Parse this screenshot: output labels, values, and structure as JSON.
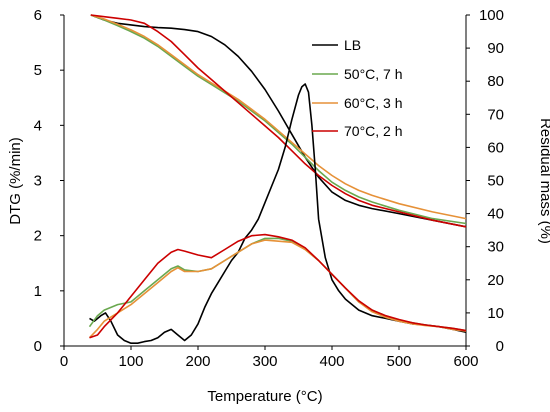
{
  "chart_data": {
    "type": "line",
    "xlabel": "Temperature (°C)",
    "ylabel_left": "DTG (%/min)",
    "ylabel_right": "Residual mass (%)",
    "xlim": [
      0,
      600
    ],
    "ylim_left": [
      0,
      6
    ],
    "ylim_right": [
      0,
      100
    ],
    "xticks": [
      "0",
      "100",
      "200",
      "300",
      "400",
      "500",
      "600"
    ],
    "yticks_left": [
      "0",
      "1",
      "2",
      "3",
      "4",
      "5",
      "6"
    ],
    "yticks_right": [
      "0",
      "10",
      "20",
      "30",
      "40",
      "50",
      "60",
      "70",
      "80",
      "90",
      "100"
    ],
    "grid": false,
    "legend_position": "top-right",
    "colors": {
      "LB": "#000000",
      "50C": "#6aa84f",
      "60C": "#e69138",
      "70C": "#cc0000"
    },
    "series": [
      {
        "name": "LB",
        "kind": "residual_mass",
        "axis": "right",
        "x": [
          40,
          60,
          80,
          100,
          120,
          140,
          160,
          180,
          200,
          220,
          240,
          260,
          280,
          300,
          320,
          340,
          360,
          380,
          400,
          420,
          440,
          460,
          500,
          550,
          600
        ],
        "y": [
          100,
          98.5,
          97.5,
          97,
          96.5,
          96.2,
          96,
          95.6,
          95,
          93.5,
          91,
          87.5,
          83,
          77.5,
          71,
          64,
          57,
          51,
          46.5,
          44,
          42.5,
          41.5,
          40,
          38,
          36
        ]
      },
      {
        "name": "50°C, 7 h",
        "kind": "residual_mass",
        "axis": "right",
        "x": [
          40,
          60,
          80,
          100,
          120,
          140,
          160,
          180,
          200,
          220,
          240,
          260,
          280,
          300,
          320,
          340,
          360,
          380,
          400,
          420,
          440,
          460,
          500,
          550,
          600
        ],
        "y": [
          100,
          98.5,
          96.8,
          95,
          93,
          90.5,
          87.5,
          84.5,
          81.5,
          79,
          76.5,
          74,
          71,
          68,
          64.5,
          61,
          57,
          53,
          49.5,
          47,
          45,
          43.5,
          41,
          38.5,
          37
        ]
      },
      {
        "name": "60°C, 3 h",
        "kind": "residual_mass",
        "axis": "right",
        "x": [
          40,
          60,
          80,
          100,
          120,
          140,
          160,
          180,
          200,
          220,
          240,
          260,
          280,
          300,
          320,
          340,
          360,
          380,
          400,
          420,
          440,
          460,
          500,
          550,
          600
        ],
        "y": [
          100,
          98.8,
          97.2,
          95.5,
          93.5,
          91,
          88,
          85,
          82,
          79.5,
          77,
          74.5,
          71.5,
          68.5,
          65,
          61.5,
          58,
          54.5,
          51.5,
          49,
          47,
          45.5,
          43,
          40.5,
          38.5
        ]
      },
      {
        "name": "70°C, 2 h",
        "kind": "residual_mass",
        "axis": "right",
        "x": [
          40,
          60,
          80,
          100,
          120,
          140,
          160,
          180,
          200,
          220,
          240,
          260,
          280,
          300,
          320,
          340,
          360,
          380,
          400,
          420,
          440,
          460,
          500,
          550,
          600
        ],
        "y": [
          100,
          99.5,
          99,
          98.5,
          97.5,
          95,
          92,
          88,
          84,
          80.5,
          77,
          73.5,
          70,
          66.5,
          63,
          59,
          55,
          51.5,
          48.5,
          46,
          44,
          42.5,
          40.5,
          38,
          36
        ]
      },
      {
        "name": "LB",
        "kind": "dtg",
        "axis": "left",
        "x": [
          38,
          45,
          55,
          62,
          70,
          80,
          90,
          100,
          110,
          120,
          130,
          140,
          150,
          160,
          170,
          180,
          190,
          200,
          210,
          220,
          230,
          240,
          250,
          260,
          270,
          280,
          290,
          300,
          310,
          320,
          330,
          340,
          350,
          355,
          360,
          365,
          370,
          375,
          380,
          390,
          400,
          410,
          420,
          430,
          440,
          460,
          480,
          500,
          520,
          540,
          560,
          580,
          600
        ],
        "y": [
          0.5,
          0.45,
          0.55,
          0.6,
          0.45,
          0.2,
          0.1,
          0.05,
          0.05,
          0.08,
          0.1,
          0.15,
          0.25,
          0.3,
          0.2,
          0.1,
          0.2,
          0.4,
          0.7,
          0.95,
          1.15,
          1.35,
          1.55,
          1.7,
          1.95,
          2.1,
          2.3,
          2.6,
          2.9,
          3.2,
          3.6,
          4.1,
          4.55,
          4.7,
          4.75,
          4.6,
          4.0,
          3.2,
          2.3,
          1.6,
          1.2,
          1.0,
          0.85,
          0.75,
          0.65,
          0.55,
          0.5,
          0.45,
          0.4,
          0.38,
          0.35,
          0.3,
          0.25
        ]
      },
      {
        "name": "50°C, 7 h",
        "kind": "dtg",
        "axis": "left",
        "x": [
          38,
          50,
          60,
          80,
          100,
          120,
          140,
          160,
          170,
          180,
          200,
          220,
          240,
          260,
          280,
          300,
          320,
          340,
          360,
          380,
          400,
          420,
          440,
          460,
          480,
          500,
          520,
          540,
          560,
          580,
          600
        ],
        "y": [
          0.35,
          0.55,
          0.65,
          0.75,
          0.8,
          1.0,
          1.2,
          1.4,
          1.45,
          1.38,
          1.35,
          1.4,
          1.55,
          1.7,
          1.85,
          1.95,
          1.95,
          1.9,
          1.75,
          1.55,
          1.3,
          1.05,
          0.8,
          0.65,
          0.55,
          0.47,
          0.42,
          0.38,
          0.35,
          0.32,
          0.28
        ]
      },
      {
        "name": "60°C, 3 h",
        "kind": "dtg",
        "axis": "left",
        "x": [
          38,
          50,
          60,
          80,
          100,
          120,
          140,
          160,
          170,
          180,
          200,
          220,
          240,
          260,
          280,
          300,
          320,
          340,
          360,
          380,
          400,
          420,
          440,
          460,
          480,
          500,
          520,
          540,
          560,
          580,
          600
        ],
        "y": [
          0.15,
          0.3,
          0.45,
          0.6,
          0.75,
          0.95,
          1.15,
          1.35,
          1.42,
          1.35,
          1.35,
          1.4,
          1.55,
          1.7,
          1.85,
          1.92,
          1.9,
          1.88,
          1.75,
          1.55,
          1.3,
          1.05,
          0.8,
          0.62,
          0.52,
          0.45,
          0.4,
          0.37,
          0.35,
          0.3,
          0.27
        ]
      },
      {
        "name": "70°C, 2 h",
        "kind": "dtg",
        "axis": "left",
        "x": [
          38,
          50,
          60,
          80,
          100,
          120,
          140,
          160,
          170,
          180,
          200,
          220,
          240,
          260,
          280,
          300,
          320,
          340,
          360,
          380,
          400,
          420,
          440,
          460,
          480,
          500,
          520,
          540,
          560,
          580,
          600
        ],
        "y": [
          0.15,
          0.2,
          0.35,
          0.6,
          0.9,
          1.2,
          1.5,
          1.7,
          1.75,
          1.72,
          1.65,
          1.6,
          1.75,
          1.9,
          2.0,
          2.02,
          1.98,
          1.92,
          1.78,
          1.55,
          1.3,
          1.05,
          0.82,
          0.65,
          0.55,
          0.48,
          0.42,
          0.38,
          0.35,
          0.32,
          0.28
        ]
      }
    ],
    "legend": [
      {
        "label": "LB",
        "color": "#000000"
      },
      {
        "label": "50°C, 7 h",
        "color": "#6aa84f"
      },
      {
        "label": "60°C, 3 h",
        "color": "#e69138"
      },
      {
        "label": "70°C, 2 h",
        "color": "#cc0000"
      }
    ]
  }
}
